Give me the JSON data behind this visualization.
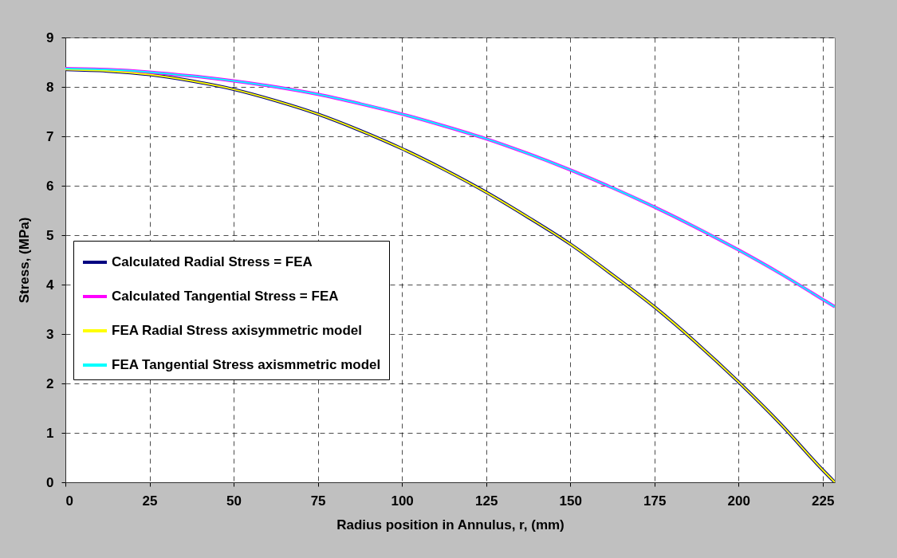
{
  "chart_data": {
    "type": "line",
    "xlabel": "Radius position in Annulus, r, (mm)",
    "ylabel": "Stress, (MPa)",
    "x": [
      0,
      12.5,
      25,
      37.5,
      50,
      62.5,
      75,
      87.5,
      100,
      112.5,
      125,
      137.5,
      150,
      162.5,
      175,
      187.5,
      200,
      212.5,
      225,
      228.6
    ],
    "series": [
      {
        "name": "Calculated Radial Stress = FEA",
        "color": "#000080",
        "values": [
          8.35,
          8.32,
          8.25,
          8.12,
          7.95,
          7.72,
          7.45,
          7.12,
          6.75,
          6.33,
          5.87,
          5.36,
          4.82,
          4.2,
          3.55,
          2.82,
          2.03,
          1.18,
          0.25,
          0
        ]
      },
      {
        "name": "Calculated Tangential Stress = FEA",
        "color": "#ff00ff",
        "values": [
          8.37,
          8.35,
          8.3,
          8.22,
          8.12,
          8.0,
          7.85,
          7.66,
          7.45,
          7.21,
          6.95,
          6.65,
          6.32,
          5.96,
          5.57,
          5.15,
          4.7,
          4.22,
          3.7,
          3.55
        ]
      },
      {
        "name": "FEA Radial Stress axisymmetric model",
        "color": "#ffff00",
        "values": [
          8.35,
          8.32,
          8.25,
          8.12,
          7.95,
          7.72,
          7.45,
          7.12,
          6.75,
          6.33,
          5.87,
          5.36,
          4.82,
          4.2,
          3.55,
          2.82,
          2.03,
          1.18,
          0.25,
          0
        ]
      },
      {
        "name": "FEA Tangential Stress axismmetric model",
        "color": "#00ffff",
        "values": [
          8.37,
          8.35,
          8.3,
          8.22,
          8.12,
          8.0,
          7.85,
          7.66,
          7.45,
          7.21,
          6.95,
          6.65,
          6.32,
          5.96,
          5.57,
          5.15,
          4.7,
          4.22,
          3.7,
          3.55
        ]
      }
    ],
    "xlim": [
      0,
      228.6
    ],
    "xticks": [
      0,
      25,
      50,
      75,
      100,
      125,
      150,
      175,
      200,
      225
    ],
    "ylim": [
      0,
      9
    ],
    "yticks": [
      0,
      1,
      2,
      3,
      4,
      5,
      6,
      7,
      8,
      9
    ],
    "grid": true,
    "legend": "left",
    "marker": "none",
    "line_style": "solid"
  }
}
